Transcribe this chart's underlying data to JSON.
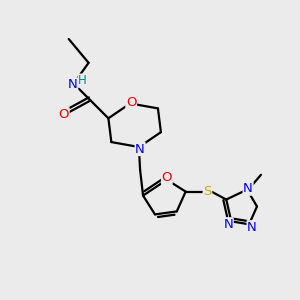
{
  "bg_color": "#ebebeb",
  "atom_colors": {
    "C": "#000000",
    "N": "#0000ee",
    "O": "#ee0000",
    "S": "#ccaa00",
    "H": "#008888"
  },
  "bond_color": "#000000",
  "bond_width": 1.6,
  "font_size": 8.5
}
